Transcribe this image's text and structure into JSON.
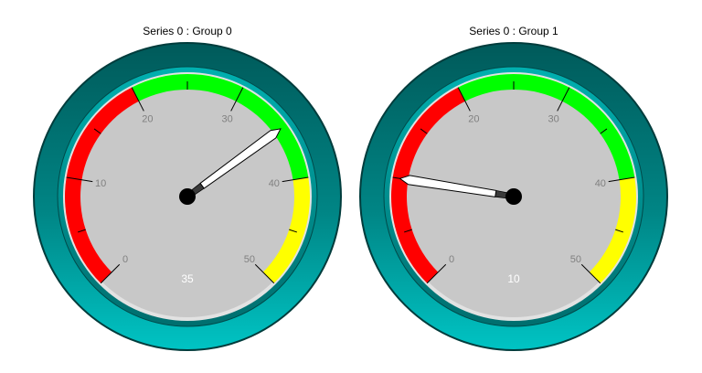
{
  "chart_data": [
    {
      "type": "gauge",
      "title": "Series 0 : Group 0",
      "value": 35,
      "value_label": "35",
      "min": 0,
      "max": 50,
      "ticks": [
        0,
        10,
        20,
        30,
        40,
        50
      ],
      "tick_labels": [
        "0",
        "10",
        "20",
        "30",
        "40",
        "50"
      ],
      "bands": [
        {
          "from": 0,
          "to": 20,
          "color": "#ff0000"
        },
        {
          "from": 20,
          "to": 40,
          "color": "#00ff00"
        },
        {
          "from": 40,
          "to": 50,
          "color": "#ffff00"
        }
      ]
    },
    {
      "type": "gauge",
      "title": "Series 0 : Group 1",
      "value": 10,
      "value_label": "10",
      "min": 0,
      "max": 50,
      "ticks": [
        0,
        10,
        20,
        30,
        40,
        50
      ],
      "tick_labels": [
        "0",
        "10",
        "20",
        "30",
        "40",
        "50"
      ],
      "bands": [
        {
          "from": 0,
          "to": 20,
          "color": "#ff0000"
        },
        {
          "from": 20,
          "to": 40,
          "color": "#00ff00"
        },
        {
          "from": 40,
          "to": 50,
          "color": "#ffff00"
        }
      ]
    }
  ],
  "colors": {
    "bezel_outer": "#005f5f",
    "bezel_ring": "#00b8b8",
    "dial_face": "#c8c8c8",
    "needle": "#ffffff",
    "hub": "#000000"
  }
}
